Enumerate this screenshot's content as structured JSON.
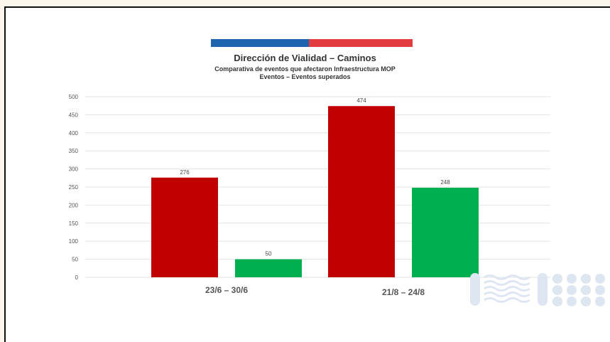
{
  "chart_data": {
    "type": "bar",
    "title": "Dirección de Vialidad – Caminos",
    "subtitle": "Comparativa de eventos que afectaron Infraestructura MOP",
    "subtitle2": "Eventos – Eventos superados",
    "categories": [
      "23/6 – 30/6",
      "21/8 – 24/8"
    ],
    "series": [
      {
        "color": "#c00000",
        "values": [
          276,
          474
        ]
      },
      {
        "color": "#00b050",
        "values": [
          50,
          248
        ]
      }
    ],
    "ylim": [
      0,
      500
    ],
    "yticks": [
      0,
      50,
      100,
      150,
      200,
      250,
      300,
      350,
      400,
      450,
      500
    ],
    "grid": true,
    "legend": "none"
  },
  "colors": {
    "flag_blue": "#1f64ae",
    "flag_red": "#e23b40",
    "watermark": "#dde6f1"
  },
  "icons": {
    "watermark": "ministry-logo-icon"
  }
}
